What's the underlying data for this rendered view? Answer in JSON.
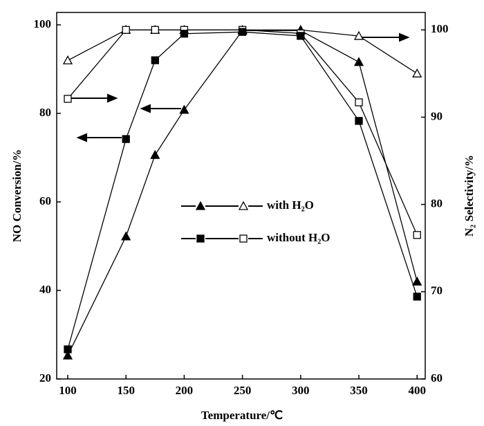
{
  "chart_data": {
    "type": "line",
    "x_label": "Temperature/℃",
    "y_label": "NO Conversion/%",
    "y2_label": "N₂ Selectivity/%",
    "x": [
      100,
      150,
      175,
      200,
      250,
      300,
      350,
      400
    ],
    "xlim": [
      90.5,
      407
    ],
    "xticks": [
      100,
      150,
      200,
      250,
      300,
      350,
      400
    ],
    "ylim": [
      20,
      102.8
    ],
    "yticks": [
      20,
      40,
      60,
      80,
      100
    ],
    "y2lim": [
      60,
      102
    ],
    "y2ticks": [
      60,
      70,
      80,
      90,
      100
    ],
    "grid": false,
    "series": [
      {
        "name": "with H₂O",
        "marker": "triangle",
        "color": "#000000",
        "values": [
          25.3,
          52.2,
          70.6,
          80.8,
          98.7,
          98.7,
          91.6,
          42
        ],
        "y2_values": [
          96.5,
          100,
          100,
          100,
          100,
          100,
          99.3,
          95
        ]
      },
      {
        "name": "without H₂O",
        "marker": "square",
        "color": "#000000",
        "values": [
          26.7,
          74.2,
          92,
          98,
          98.4,
          97.5,
          78.3,
          38.6
        ],
        "y2_values": [
          92.1,
          100,
          100,
          100,
          100,
          99.6,
          91.7,
          76.5
        ]
      }
    ]
  }
}
